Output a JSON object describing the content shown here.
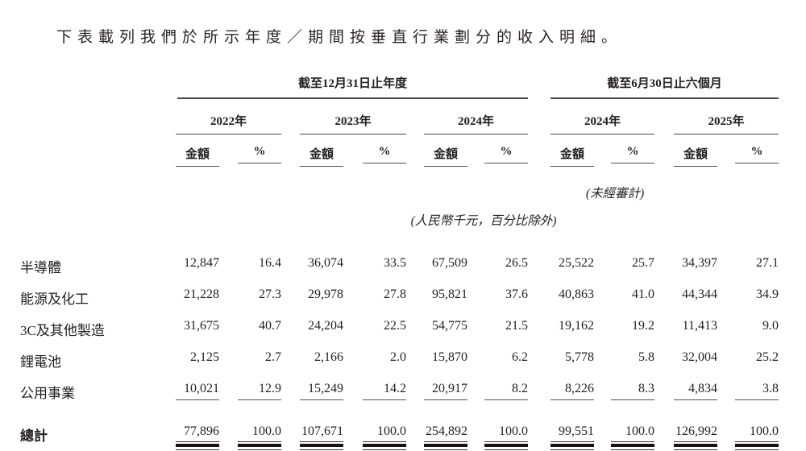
{
  "intro": "下表載列我們於所示年度／期間按垂直行業劃分的收入明細。",
  "table": {
    "groups": [
      {
        "label": "截至12月31日止年度",
        "years": [
          "2022年",
          "2023年",
          "2024年"
        ]
      },
      {
        "label": "截至6月30日止六個月",
        "years": [
          "2024年",
          "2025年"
        ]
      }
    ],
    "sub_headers": {
      "amount": "金額",
      "percent": "%"
    },
    "unaudited_note": "(未經審計)",
    "unit_note": "(人民幣千元，百分比除外)",
    "rows": [
      {
        "label": "半導體",
        "values": [
          "12,847",
          "16.4",
          "36,074",
          "33.5",
          "67,509",
          "26.5",
          "25,522",
          "25.7",
          "34,397",
          "27.1"
        ]
      },
      {
        "label": "能源及化工",
        "values": [
          "21,228",
          "27.3",
          "29,978",
          "27.8",
          "95,821",
          "37.6",
          "40,863",
          "41.0",
          "44,344",
          "34.9"
        ]
      },
      {
        "label": "3C及其他製造",
        "values": [
          "31,675",
          "40.7",
          "24,204",
          "22.5",
          "54,775",
          "21.5",
          "19,162",
          "19.2",
          "11,413",
          "9.0"
        ]
      },
      {
        "label": "鋰電池",
        "values": [
          "2,125",
          "2.7",
          "2,166",
          "2.0",
          "15,870",
          "6.2",
          "5,778",
          "5.8",
          "32,004",
          "25.2"
        ]
      },
      {
        "label": "公用事業",
        "values": [
          "10,021",
          "12.9",
          "15,249",
          "14.2",
          "20,917",
          "8.2",
          "8,226",
          "8.3",
          "4,834",
          "3.8"
        ]
      }
    ],
    "total": {
      "label": "總計",
      "values": [
        "77,896",
        "100.0",
        "107,671",
        "100.0",
        "254,892",
        "100.0",
        "99,551",
        "100.0",
        "126,992",
        "100.0"
      ]
    }
  }
}
